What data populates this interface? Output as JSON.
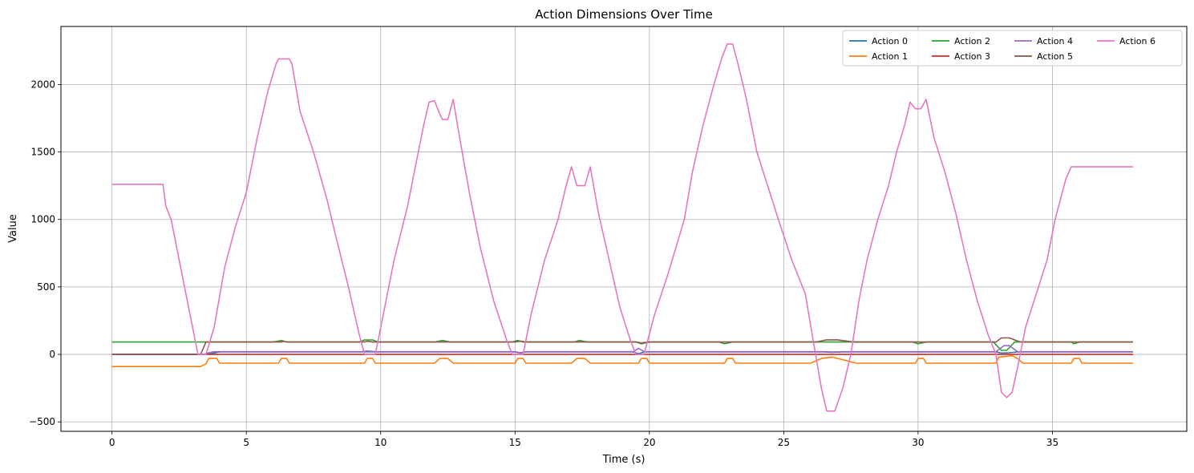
{
  "chart_data": {
    "type": "line",
    "title": "Action Dimensions Over Time",
    "xlabel": "Time (s)",
    "ylabel": "Value",
    "xlim": [
      -1.9,
      40.0
    ],
    "ylim": [
      -570,
      2430
    ],
    "xticks": [
      0,
      5,
      10,
      15,
      20,
      25,
      30,
      35
    ],
    "xtick_labels": [
      "0",
      "5",
      "10",
      "15",
      "20",
      "25",
      "30",
      "35"
    ],
    "yticks": [
      -500,
      0,
      500,
      1000,
      1500,
      2000
    ],
    "ytick_labels": [
      "−500",
      "0",
      "500",
      "1000",
      "1500",
      "2000"
    ],
    "grid": true,
    "legend": {
      "placement": "top-right",
      "columns": 4
    },
    "series": [
      {
        "name": "Action 0",
        "color": "#1f77b4",
        "points": [
          [
            0,
            0
          ],
          [
            3.4,
            0
          ],
          [
            3.6,
            3
          ],
          [
            3.8,
            10
          ],
          [
            4.0,
            18
          ],
          [
            6.5,
            18
          ],
          [
            9.3,
            18
          ],
          [
            9.5,
            20
          ],
          [
            9.8,
            18
          ],
          [
            15.0,
            18
          ],
          [
            15.2,
            10
          ],
          [
            15.4,
            18
          ],
          [
            19.4,
            18
          ],
          [
            19.6,
            5
          ],
          [
            19.8,
            18
          ],
          [
            26.5,
            18
          ],
          [
            26.8,
            15
          ],
          [
            27.2,
            18
          ],
          [
            32.9,
            18
          ],
          [
            33.1,
            10
          ],
          [
            33.4,
            12
          ],
          [
            33.7,
            18
          ],
          [
            38.0,
            18
          ]
        ]
      },
      {
        "name": "Action 1",
        "color": "#ff7f0e",
        "points": [
          [
            0,
            -90
          ],
          [
            3.3,
            -90
          ],
          [
            3.5,
            -70
          ],
          [
            3.6,
            -30
          ],
          [
            3.9,
            -30
          ],
          [
            4.0,
            -65
          ],
          [
            6.2,
            -65
          ],
          [
            6.3,
            -30
          ],
          [
            6.5,
            -30
          ],
          [
            6.6,
            -65
          ],
          [
            9.4,
            -65
          ],
          [
            9.5,
            -30
          ],
          [
            9.7,
            -30
          ],
          [
            9.8,
            -65
          ],
          [
            12.0,
            -65
          ],
          [
            12.2,
            -30
          ],
          [
            12.5,
            -30
          ],
          [
            12.7,
            -65
          ],
          [
            15.0,
            -65
          ],
          [
            15.1,
            -30
          ],
          [
            15.3,
            -30
          ],
          [
            15.4,
            -65
          ],
          [
            17.1,
            -65
          ],
          [
            17.3,
            -30
          ],
          [
            17.6,
            -30
          ],
          [
            17.8,
            -65
          ],
          [
            19.6,
            -65
          ],
          [
            19.7,
            -30
          ],
          [
            19.9,
            -30
          ],
          [
            20.0,
            -65
          ],
          [
            22.8,
            -65
          ],
          [
            22.9,
            -30
          ],
          [
            23.1,
            -30
          ],
          [
            23.2,
            -65
          ],
          [
            26.0,
            -65
          ],
          [
            26.4,
            -30
          ],
          [
            26.8,
            -20
          ],
          [
            27.3,
            -45
          ],
          [
            27.7,
            -65
          ],
          [
            29.9,
            -65
          ],
          [
            30.0,
            -30
          ],
          [
            30.2,
            -30
          ],
          [
            30.3,
            -65
          ],
          [
            32.9,
            -65
          ],
          [
            33.0,
            -20
          ],
          [
            33.5,
            -10
          ],
          [
            33.7,
            -30
          ],
          [
            33.9,
            -65
          ],
          [
            35.7,
            -65
          ],
          [
            35.8,
            -30
          ],
          [
            36.0,
            -30
          ],
          [
            36.1,
            -65
          ],
          [
            38.0,
            -65
          ]
        ]
      },
      {
        "name": "Action 2",
        "color": "#2ca02c",
        "points": [
          [
            0,
            92
          ],
          [
            6.0,
            92
          ],
          [
            6.3,
            103
          ],
          [
            6.5,
            92
          ],
          [
            9.2,
            92
          ],
          [
            9.4,
            107
          ],
          [
            9.7,
            107
          ],
          [
            9.9,
            92
          ],
          [
            12.0,
            92
          ],
          [
            12.3,
            103
          ],
          [
            12.6,
            92
          ],
          [
            14.9,
            92
          ],
          [
            15.1,
            103
          ],
          [
            15.3,
            92
          ],
          [
            17.2,
            92
          ],
          [
            17.4,
            103
          ],
          [
            17.7,
            92
          ],
          [
            19.5,
            92
          ],
          [
            19.7,
            78
          ],
          [
            20.0,
            92
          ],
          [
            22.6,
            92
          ],
          [
            22.8,
            78
          ],
          [
            23.1,
            92
          ],
          [
            29.8,
            92
          ],
          [
            30.0,
            78
          ],
          [
            30.3,
            92
          ],
          [
            32.8,
            92
          ],
          [
            33.1,
            30
          ],
          [
            33.3,
            30
          ],
          [
            33.6,
            92
          ],
          [
            35.7,
            92
          ],
          [
            35.8,
            78
          ],
          [
            36.0,
            92
          ],
          [
            38.0,
            92
          ]
        ]
      },
      {
        "name": "Action 3",
        "color": "#d62728",
        "points": [
          [
            0,
            0
          ],
          [
            38.0,
            0
          ]
        ]
      },
      {
        "name": "Action 4",
        "color": "#9467bd",
        "points": [
          [
            0,
            0
          ],
          [
            3.4,
            0
          ],
          [
            3.6,
            12
          ],
          [
            3.8,
            20
          ],
          [
            9.3,
            20
          ],
          [
            9.5,
            25
          ],
          [
            9.8,
            20
          ],
          [
            15.0,
            20
          ],
          [
            15.2,
            12
          ],
          [
            15.4,
            20
          ],
          [
            19.4,
            20
          ],
          [
            19.6,
            45
          ],
          [
            19.8,
            20
          ],
          [
            26.5,
            20
          ],
          [
            26.8,
            18
          ],
          [
            27.2,
            20
          ],
          [
            32.9,
            20
          ],
          [
            33.2,
            65
          ],
          [
            33.4,
            65
          ],
          [
            33.7,
            20
          ],
          [
            38.0,
            20
          ]
        ]
      },
      {
        "name": "Action 5",
        "color": "#8c564b",
        "points": [
          [
            0,
            0
          ],
          [
            3.3,
            0
          ],
          [
            3.5,
            92
          ],
          [
            6.3,
            92
          ],
          [
            6.4,
            98
          ],
          [
            6.5,
            92
          ],
          [
            9.4,
            92
          ],
          [
            9.5,
            98
          ],
          [
            9.7,
            92
          ],
          [
            15.0,
            92
          ],
          [
            15.2,
            98
          ],
          [
            15.4,
            92
          ],
          [
            19.5,
            92
          ],
          [
            19.7,
            85
          ],
          [
            20.0,
            92
          ],
          [
            26.2,
            92
          ],
          [
            26.6,
            108
          ],
          [
            27.0,
            108
          ],
          [
            27.6,
            92
          ],
          [
            32.9,
            92
          ],
          [
            33.1,
            122
          ],
          [
            33.4,
            122
          ],
          [
            33.8,
            92
          ],
          [
            38.0,
            92
          ]
        ]
      },
      {
        "name": "Action 6",
        "color": "#e377c2",
        "points": [
          [
            0,
            1260
          ],
          [
            1.9,
            1260
          ],
          [
            2.0,
            1100
          ],
          [
            2.2,
            1000
          ],
          [
            2.5,
            700
          ],
          [
            2.8,
            400
          ],
          [
            3.1,
            100
          ],
          [
            3.2,
            0
          ],
          [
            3.5,
            0
          ],
          [
            3.8,
            200
          ],
          [
            4.2,
            650
          ],
          [
            4.6,
            950
          ],
          [
            5.0,
            1200
          ],
          [
            5.4,
            1600
          ],
          [
            5.8,
            1950
          ],
          [
            6.1,
            2150
          ],
          [
            6.2,
            2190
          ],
          [
            6.6,
            2190
          ],
          [
            6.7,
            2150
          ],
          [
            7.0,
            1800
          ],
          [
            7.5,
            1500
          ],
          [
            8.0,
            1150
          ],
          [
            8.3,
            900
          ],
          [
            8.8,
            500
          ],
          [
            9.2,
            150
          ],
          [
            9.4,
            0
          ],
          [
            9.8,
            0
          ],
          [
            10.1,
            300
          ],
          [
            10.5,
            700
          ],
          [
            11.0,
            1100
          ],
          [
            11.3,
            1400
          ],
          [
            11.6,
            1700
          ],
          [
            11.8,
            1870
          ],
          [
            12.0,
            1880
          ],
          [
            12.2,
            1780
          ],
          [
            12.3,
            1740
          ],
          [
            12.5,
            1740
          ],
          [
            12.7,
            1890
          ],
          [
            12.9,
            1650
          ],
          [
            13.3,
            1200
          ],
          [
            13.7,
            800
          ],
          [
            14.2,
            400
          ],
          [
            14.7,
            100
          ],
          [
            14.9,
            0
          ],
          [
            15.3,
            0
          ],
          [
            15.6,
            300
          ],
          [
            16.1,
            700
          ],
          [
            16.6,
            1000
          ],
          [
            16.9,
            1250
          ],
          [
            17.1,
            1390
          ],
          [
            17.3,
            1250
          ],
          [
            17.6,
            1250
          ],
          [
            17.8,
            1390
          ],
          [
            18.1,
            1050
          ],
          [
            18.5,
            700
          ],
          [
            18.9,
            350
          ],
          [
            19.3,
            100
          ],
          [
            19.5,
            0
          ],
          [
            19.8,
            0
          ],
          [
            20.2,
            300
          ],
          [
            20.7,
            600
          ],
          [
            21.3,
            1000
          ],
          [
            21.6,
            1350
          ],
          [
            22.0,
            1700
          ],
          [
            22.4,
            2000
          ],
          [
            22.7,
            2200
          ],
          [
            22.9,
            2300
          ],
          [
            23.1,
            2300
          ],
          [
            23.3,
            2150
          ],
          [
            23.6,
            1900
          ],
          [
            24.0,
            1500
          ],
          [
            24.4,
            1250
          ],
          [
            24.8,
            1000
          ],
          [
            25.3,
            700
          ],
          [
            25.8,
            450
          ],
          [
            26.1,
            100
          ],
          [
            26.4,
            -250
          ],
          [
            26.6,
            -420
          ],
          [
            26.9,
            -420
          ],
          [
            27.2,
            -250
          ],
          [
            27.5,
            0
          ],
          [
            27.8,
            400
          ],
          [
            28.1,
            700
          ],
          [
            28.5,
            1000
          ],
          [
            28.9,
            1250
          ],
          [
            29.2,
            1500
          ],
          [
            29.5,
            1700
          ],
          [
            29.7,
            1870
          ],
          [
            29.9,
            1820
          ],
          [
            30.1,
            1820
          ],
          [
            30.3,
            1890
          ],
          [
            30.6,
            1600
          ],
          [
            31.0,
            1350
          ],
          [
            31.4,
            1050
          ],
          [
            31.8,
            700
          ],
          [
            32.2,
            400
          ],
          [
            32.6,
            150
          ],
          [
            32.9,
            0
          ],
          [
            33.1,
            -280
          ],
          [
            33.3,
            -320
          ],
          [
            33.5,
            -280
          ],
          [
            33.7,
            -100
          ],
          [
            34.0,
            200
          ],
          [
            34.4,
            450
          ],
          [
            34.8,
            700
          ],
          [
            35.1,
            1000
          ],
          [
            35.5,
            1300
          ],
          [
            35.7,
            1390
          ],
          [
            38.0,
            1390
          ]
        ]
      }
    ]
  }
}
